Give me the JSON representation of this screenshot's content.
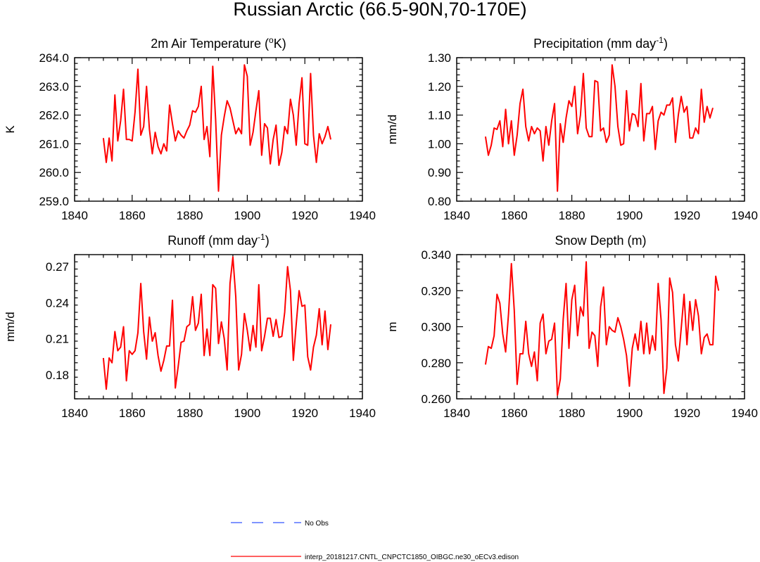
{
  "main_title": "Russian Arctic (66.5-90N,70-170E)",
  "colors": {
    "series": "#ff0000",
    "obs": "#3355ff",
    "axis": "#000000"
  },
  "legend": {
    "obs_label": "No Obs",
    "model_label": "interp_20181217.CNTL_CNPCTC1850_OIBGC.ne30_oECv3.edison"
  },
  "chart_data": [
    {
      "type": "line",
      "title": "2m Air Temperature (",
      "title_sup": "o",
      "title_after": "K)",
      "ylabel": "K",
      "xlim": [
        1840,
        1940
      ],
      "xticks": [
        1840,
        1860,
        1880,
        1900,
        1920,
        1940
      ],
      "ylim": [
        259.0,
        264.0
      ],
      "yticks": [
        259.0,
        260.0,
        261.0,
        262.0,
        263.0,
        264.0
      ],
      "ytick_labels": [
        "259.0",
        "260.0",
        "261.0",
        "262.0",
        "263.0",
        "264.0"
      ],
      "series": [
        {
          "name": "interp_20181217.CNTL_CNPCTC1850_OIBGC.ne30_oECv3.edison",
          "x_start": 1850,
          "values": [
            261.2,
            260.35,
            261.2,
            260.4,
            262.7,
            261.1,
            261.8,
            262.9,
            261.15,
            261.15,
            261.1,
            262.1,
            263.6,
            261.3,
            261.6,
            263.0,
            261.5,
            260.65,
            261.4,
            260.9,
            260.65,
            261.0,
            260.75,
            262.35,
            261.7,
            261.1,
            261.45,
            261.3,
            261.2,
            261.45,
            261.65,
            262.15,
            262.1,
            262.3,
            263.0,
            261.15,
            261.6,
            260.55,
            263.7,
            261.85,
            259.35,
            261.3,
            261.95,
            262.5,
            262.25,
            261.8,
            261.35,
            261.55,
            261.35,
            263.75,
            263.35,
            260.95,
            261.4,
            262.15,
            262.85,
            260.6,
            261.7,
            261.55,
            260.3,
            261.15,
            261.65,
            260.25,
            260.7,
            261.6,
            261.35,
            262.55,
            262.0,
            260.95,
            262.4,
            263.3,
            261.0,
            260.95,
            263.45,
            261.3,
            260.35,
            261.35,
            261.0,
            261.25,
            261.6,
            261.15
          ]
        }
      ]
    },
    {
      "type": "line",
      "title": "Precipitation (mm day",
      "title_sup": "-1",
      "title_after": ")",
      "ylabel": "mm/d",
      "xlim": [
        1840,
        1940
      ],
      "xticks": [
        1840,
        1860,
        1880,
        1900,
        1920,
        1940
      ],
      "ylim": [
        0.8,
        1.3
      ],
      "yticks": [
        0.8,
        0.9,
        1.0,
        1.1,
        1.2,
        1.3
      ],
      "ytick_labels": [
        "0.80",
        "0.90",
        "1.00",
        "1.10",
        "1.20",
        "1.30"
      ],
      "series": [
        {
          "name": "interp_20181217.CNTL_CNPCTC1850_OIBGC.ne30_oECv3.edison",
          "x_start": 1850,
          "values": [
            1.025,
            0.96,
            0.995,
            1.055,
            1.05,
            1.08,
            0.99,
            1.12,
            1.0,
            1.08,
            0.96,
            1.03,
            1.14,
            1.19,
            1.06,
            1.01,
            1.06,
            1.035,
            1.055,
            1.045,
            0.94,
            1.06,
            0.995,
            1.08,
            1.14,
            0.835,
            1.07,
            1.005,
            1.09,
            1.15,
            1.13,
            1.2,
            1.035,
            1.1,
            1.245,
            1.055,
            1.025,
            1.025,
            1.22,
            1.215,
            1.045,
            1.055,
            1.005,
            1.03,
            1.275,
            1.2,
            1.06,
            0.995,
            1.0,
            1.185,
            1.045,
            1.105,
            1.1,
            1.06,
            1.21,
            1.01,
            1.105,
            1.105,
            1.13,
            0.98,
            1.08,
            1.11,
            1.1,
            1.135,
            1.135,
            1.16,
            1.005,
            1.1,
            1.165,
            1.11,
            1.13,
            1.02,
            1.02,
            1.055,
            1.035,
            1.19,
            1.075,
            1.13,
            1.09,
            1.125
          ]
        }
      ]
    },
    {
      "type": "line",
      "title": "Runoff (mm day",
      "title_sup": "-1",
      "title_after": ")",
      "ylabel": "mm/d",
      "xlim": [
        1840,
        1940
      ],
      "xticks": [
        1840,
        1860,
        1880,
        1900,
        1920,
        1940
      ],
      "ylim": [
        0.16,
        0.28
      ],
      "yticks": [
        0.18,
        0.21,
        0.24,
        0.27
      ],
      "ytick_labels": [
        "0.18",
        "0.21",
        "0.24",
        "0.27"
      ],
      "series": [
        {
          "name": "interp_20181217.CNTL_CNPCTC1850_OIBGC.ne30_oECv3.edison",
          "x_start": 1850,
          "values": [
            0.194,
            0.168,
            0.194,
            0.19,
            0.216,
            0.2,
            0.203,
            0.22,
            0.175,
            0.2,
            0.197,
            0.2,
            0.215,
            0.256,
            0.216,
            0.193,
            0.228,
            0.208,
            0.215,
            0.196,
            0.183,
            0.192,
            0.204,
            0.204,
            0.242,
            0.169,
            0.187,
            0.207,
            0.208,
            0.22,
            0.222,
            0.245,
            0.217,
            0.223,
            0.247,
            0.196,
            0.218,
            0.196,
            0.255,
            0.252,
            0.206,
            0.224,
            0.21,
            0.184,
            0.256,
            0.278,
            0.245,
            0.184,
            0.197,
            0.231,
            0.217,
            0.2,
            0.221,
            0.203,
            0.255,
            0.2,
            0.212,
            0.227,
            0.227,
            0.212,
            0.226,
            0.211,
            0.212,
            0.232,
            0.27,
            0.25,
            0.192,
            0.222,
            0.25,
            0.237,
            0.238,
            0.195,
            0.184,
            0.203,
            0.213,
            0.235,
            0.205,
            0.233,
            0.201,
            0.222
          ]
        }
      ]
    },
    {
      "type": "line",
      "title": "Snow Depth (m)",
      "title_sup": "",
      "title_after": "",
      "ylabel": "m",
      "xlim": [
        1840,
        1940
      ],
      "xticks": [
        1840,
        1860,
        1880,
        1900,
        1920,
        1940
      ],
      "ylim": [
        0.26,
        0.34
      ],
      "yticks": [
        0.26,
        0.28,
        0.3,
        0.32,
        0.34
      ],
      "ytick_labels": [
        "0.260",
        "0.280",
        "0.300",
        "0.320",
        "0.340"
      ],
      "series": [
        {
          "name": "interp_20181217.CNTL_CNPCTC1850_OIBGC.ne30_oECv3.edison",
          "x_start": 1850,
          "values": [
            0.279,
            0.289,
            0.288,
            0.295,
            0.318,
            0.313,
            0.296,
            0.286,
            0.307,
            0.335,
            0.309,
            0.268,
            0.285,
            0.285,
            0.303,
            0.285,
            0.278,
            0.286,
            0.27,
            0.302,
            0.307,
            0.285,
            0.292,
            0.293,
            0.302,
            0.262,
            0.271,
            0.304,
            0.324,
            0.288,
            0.315,
            0.323,
            0.295,
            0.311,
            0.306,
            0.336,
            0.288,
            0.297,
            0.295,
            0.278,
            0.311,
            0.322,
            0.29,
            0.3,
            0.298,
            0.297,
            0.305,
            0.3,
            0.293,
            0.284,
            0.267,
            0.288,
            0.296,
            0.287,
            0.303,
            0.285,
            0.302,
            0.285,
            0.295,
            0.287,
            0.324,
            0.304,
            0.263,
            0.277,
            0.327,
            0.319,
            0.29,
            0.281,
            0.299,
            0.318,
            0.29,
            0.314,
            0.298,
            0.315,
            0.306,
            0.285,
            0.294,
            0.296,
            0.29,
            0.29,
            0.328,
            0.32
          ]
        }
      ]
    }
  ]
}
